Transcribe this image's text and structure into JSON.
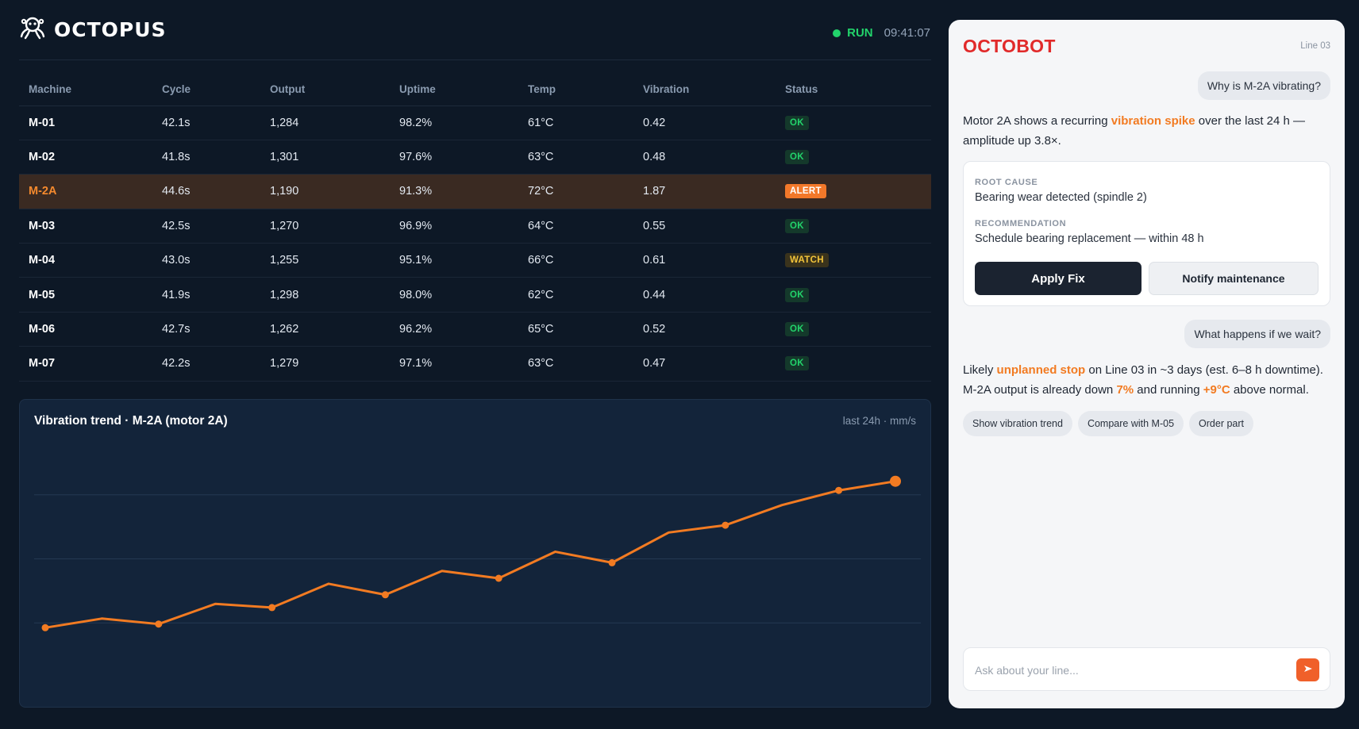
{
  "brand": {
    "name": "OCTOPUS"
  },
  "status": {
    "state": "RUN",
    "time": "09:41:07",
    "state_color": "#22d36b"
  },
  "table": {
    "headers": [
      "Machine",
      "Cycle",
      "Output",
      "Uptime",
      "Temp",
      "Vibration",
      "Status"
    ],
    "rows": [
      {
        "machine": "M-01",
        "cycle": "42.1s",
        "output": "1,284",
        "uptime": "98.2%",
        "temp": "61°C",
        "vibration": "0.42",
        "status": "OK"
      },
      {
        "machine": "M-02",
        "cycle": "41.8s",
        "output": "1,301",
        "uptime": "97.6%",
        "temp": "63°C",
        "vibration": "0.48",
        "status": "OK"
      },
      {
        "machine": "M-2A",
        "cycle": "44.6s",
        "output": "1,190",
        "uptime": "91.3%",
        "temp": "72°C",
        "vibration": "1.87",
        "status": "ALERT"
      },
      {
        "machine": "M-03",
        "cycle": "42.5s",
        "output": "1,270",
        "uptime": "96.9%",
        "temp": "64°C",
        "vibration": "0.55",
        "status": "OK"
      },
      {
        "machine": "M-04",
        "cycle": "43.0s",
        "output": "1,255",
        "uptime": "95.1%",
        "temp": "66°C",
        "vibration": "0.61",
        "status": "WATCH"
      },
      {
        "machine": "M-05",
        "cycle": "41.9s",
        "output": "1,298",
        "uptime": "98.0%",
        "temp": "62°C",
        "vibration": "0.44",
        "status": "OK"
      },
      {
        "machine": "M-06",
        "cycle": "42.7s",
        "output": "1,262",
        "uptime": "96.2%",
        "temp": "65°C",
        "vibration": "0.52",
        "status": "OK"
      },
      {
        "machine": "M-07",
        "cycle": "42.2s",
        "output": "1,279",
        "uptime": "97.1%",
        "temp": "63°C",
        "vibration": "0.47",
        "status": "OK"
      }
    ]
  },
  "chart": {
    "title": "Vibration trend · M-2A (motor 2A)",
    "meta": "last 24h · mm/s"
  },
  "chart_data": {
    "type": "line",
    "title": "Vibration trend · M-2A (motor 2A)",
    "xlabel": "",
    "ylabel": "",
    "x": [
      0,
      1,
      2,
      3,
      4,
      5,
      6,
      7,
      8,
      9,
      10,
      11,
      12,
      13,
      14,
      15
    ],
    "series": [
      {
        "values": [
          0.5,
          0.6,
          0.54,
          0.76,
          0.72,
          0.98,
          0.86,
          1.12,
          1.04,
          1.33,
          1.21,
          1.54,
          1.62,
          1.84,
          2.0,
          2.1
        ],
        "color": "#f27b22"
      }
    ],
    "markers_at": [
      0,
      2,
      4,
      6,
      8,
      10,
      12,
      14,
      15
    ],
    "ylim": [
      0,
      2.6
    ],
    "grid": "horizontal",
    "legend": "none"
  },
  "chat": {
    "title": "OCTOBOT",
    "line": "Line 03",
    "q1": "Why is M-2A vibrating?",
    "a1": {
      "p1": "Motor 2A shows a recurring ",
      "h1": "vibration spike",
      "p2": " over the last 24 h — amplitude up 3.8×."
    },
    "card": {
      "root_cause_label": "ROOT CAUSE",
      "root_cause": "Bearing wear detected (spindle 2)",
      "recommendation_label": "RECOMMENDATION",
      "recommendation": "Schedule bearing replacement — within 48 h",
      "apply_label": "Apply Fix",
      "notify_label": "Notify maintenance"
    },
    "q2": "What happens if we wait?",
    "a2": {
      "p1": "Likely ",
      "h1": "unplanned stop",
      "p2": " on Line 03 in ~3 days (est. 6–8 h downtime). M-2A output is already down ",
      "h2": "7%",
      "p3": " and running ",
      "h3": "+9°C",
      "p4": " above normal."
    },
    "chips": [
      "Show vibration trend",
      "Compare with M-05",
      "Order part"
    ],
    "input_placeholder": "Ask about your line...",
    "accent": "#f27b22"
  }
}
